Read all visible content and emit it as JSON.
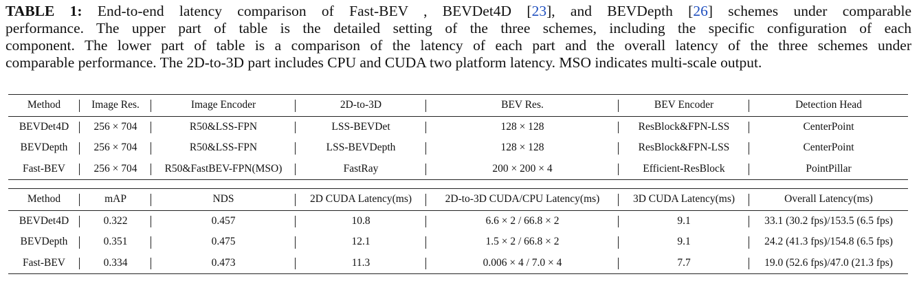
{
  "caption": {
    "label": "TABLE 1:",
    "line1": " End-to-end latency comparison of Fast-BEV , BEVDet4D [",
    "ref1": "23",
    "line1b": "], and BEVDepth [",
    "ref2": "26",
    "line1c": "] schemes under comparable",
    "line2": "performance. The upper part of table is the detailed setting of the three schemes, including the specific configuration of each",
    "line3": "component. The lower part of table is a comparison of the latency of each part and the overall latency of the three schemes under",
    "line4": "comparable performance. The 2D-to-3D part includes CPU and CUDA two platform latency. MSO indicates multi-scale output."
  },
  "table_settings": {
    "headers": [
      "Method",
      "Image Res.",
      "Image Encoder",
      "2D-to-3D",
      "BEV Res.",
      "BEV Encoder",
      "Detection Head"
    ],
    "rows": [
      [
        "BEVDet4D",
        "256 × 704",
        "R50&LSS-FPN",
        "LSS-BEVDet",
        "128 × 128",
        "ResBlock&FPN-LSS",
        "CenterPoint"
      ],
      [
        "BEVDepth",
        "256 × 704",
        "R50&LSS-FPN",
        "LSS-BEVDepth",
        "128 × 128",
        "ResBlock&FPN-LSS",
        "CenterPoint"
      ],
      [
        "Fast-BEV",
        "256 × 704",
        "R50&FastBEV-FPN(MSO)",
        "FastRay",
        "200 × 200 × 4",
        "Efficient-ResBlock",
        "PointPillar"
      ]
    ]
  },
  "table_latency": {
    "headers": [
      "Method",
      "mAP",
      "NDS",
      "2D CUDA Latency(ms)",
      "2D-to-3D CUDA/CPU Latency(ms)",
      "3D CUDA Latency(ms)",
      "Overall Latency(ms)"
    ],
    "rows": [
      [
        "BEVDet4D",
        "0.322",
        "0.457",
        "10.8",
        "6.6 × 2 / 66.8 × 2",
        "9.1",
        "33.1 (30.2 fps)/153.5 (6.5 fps)"
      ],
      [
        "BEVDepth",
        "0.351",
        "0.475",
        "12.1",
        "1.5 × 2 / 66.8 × 2",
        "9.1",
        "24.2 (41.3 fps)/154.8 (6.5 fps)"
      ],
      [
        "Fast-BEV",
        "0.334",
        "0.473",
        "11.3",
        "0.006 × 4 / 7.0 × 4",
        "7.7",
        "19.0 (52.6 fps)/47.0 (21.3 fps)"
      ]
    ]
  }
}
